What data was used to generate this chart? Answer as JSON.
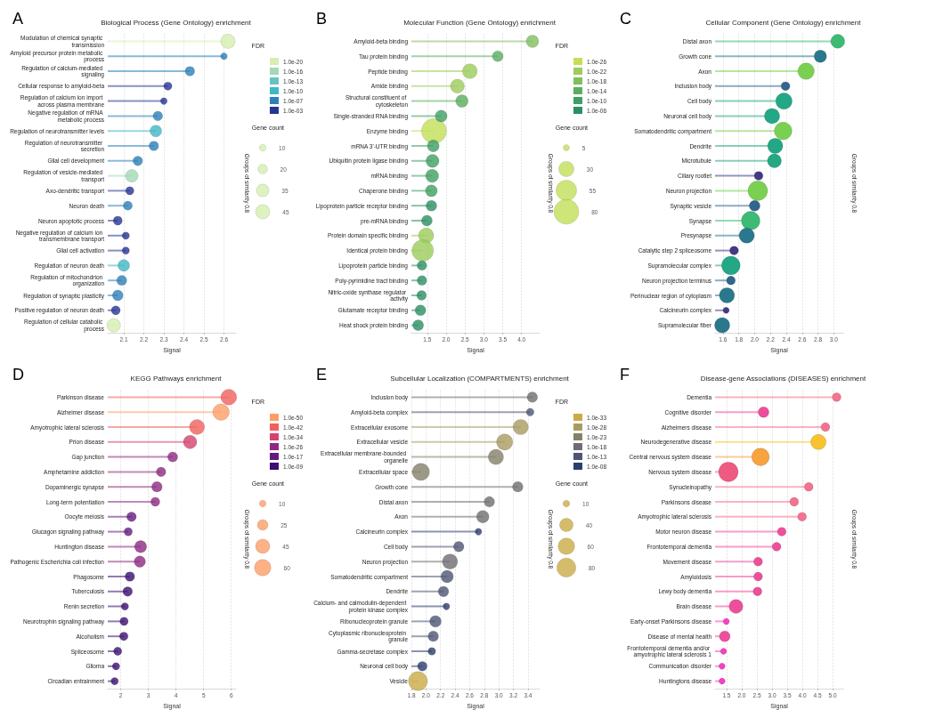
{
  "chart_data": [
    {
      "type": "lollipop",
      "orientation": "horizontal",
      "title": "Biological Process (Gene Ontology) enrichment",
      "xlabel": "Signal",
      "y2label": "Groups of similarity 0.8",
      "annotations": [
        "A",
        "Gene count"
      ],
      "legend_title": "FDR",
      "legend": "right",
      "grid": "x",
      "marker": "circle",
      "categories": [
        "Modulation of chemical synaptic transmission",
        "Amyloid precursor protein metabolic process",
        "Regulation of calcium-mediated signaling",
        "Cellular response to amyloid-beta",
        "Regulation of calcium ion import across plasma membrane",
        "Negative regulation of mRNA metabolic process",
        "Regulation of neurotransmitter levels",
        "Regulation of neurotransmitter secretion",
        "Glial cell development",
        "Regulation of vesicle-mediated transport",
        "Axo-dendritic transport",
        "Neuron death",
        "Neuron apoptotic process",
        "Negative regulation of calcium ion transmembrane transport",
        "Glial cell activation",
        "Regulation of neuron death",
        "Regulation of mitochondrion organization",
        "Regulation of synaptic plasticity",
        "Positive regulation of neuron death",
        "Regulation of cellular catabolic process"
      ],
      "size_legend": [
        10,
        20,
        35,
        45
      ],
      "xlim": [
        2.02,
        2.66
      ],
      "xticks": [
        2.1,
        2.2,
        2.3,
        2.4,
        2.5,
        2.6
      ],
      "series": [
        {
          "name": "1.0e-20",
          "color": "#d6efb0",
          "values": [
            2.62,
            null,
            null,
            null,
            null,
            null,
            null,
            null,
            null,
            null,
            null,
            null,
            null,
            null,
            null,
            null,
            null,
            null,
            null,
            2.05
          ],
          "sizes": [
            45,
            null,
            null,
            null,
            null,
            null,
            null,
            null,
            null,
            null,
            null,
            null,
            null,
            null,
            null,
            null,
            null,
            null,
            null,
            40
          ]
        },
        {
          "name": "1.0e-16",
          "color": "#a1dab4",
          "values": [
            null,
            null,
            null,
            null,
            null,
            null,
            null,
            null,
            null,
            2.14,
            null,
            null,
            null,
            null,
            null,
            null,
            null,
            null,
            null,
            null
          ],
          "sizes": [
            null,
            null,
            null,
            null,
            null,
            null,
            null,
            null,
            null,
            35,
            null,
            null,
            null,
            null,
            null,
            null,
            null,
            null,
            null,
            null
          ]
        },
        {
          "name": "1.0e-13",
          "color": "#67c3c1",
          "values": [
            null,
            null,
            null,
            null,
            null,
            null,
            null,
            null,
            null,
            null,
            null,
            null,
            null,
            null,
            null,
            null,
            null,
            null,
            null,
            null
          ]
        },
        {
          "name": "1.0e-10",
          "color": "#41b6c4",
          "values": [
            null,
            null,
            null,
            null,
            null,
            null,
            2.26,
            null,
            null,
            null,
            null,
            null,
            null,
            null,
            null,
            2.1,
            null,
            null,
            null,
            null
          ],
          "sizes": [
            null,
            null,
            null,
            null,
            null,
            null,
            30,
            null,
            null,
            null,
            null,
            null,
            null,
            null,
            null,
            30,
            null,
            null,
            null,
            null
          ]
        },
        {
          "name": "1.0e-07",
          "color": "#2c7fb8",
          "values": [
            null,
            2.6,
            2.43,
            null,
            null,
            2.27,
            null,
            2.25,
            2.17,
            null,
            null,
            2.12,
            null,
            null,
            null,
            null,
            2.09,
            2.07,
            null,
            null
          ],
          "sizes": [
            null,
            10,
            20,
            null,
            null,
            20,
            null,
            20,
            20,
            null,
            null,
            18,
            null,
            null,
            null,
            null,
            22,
            25,
            null,
            null
          ]
        },
        {
          "name": "1.0e-03",
          "color": "#253494",
          "values": [
            null,
            null,
            null,
            2.32,
            2.3,
            null,
            null,
            null,
            null,
            null,
            2.13,
            null,
            2.07,
            2.11,
            2.11,
            null,
            null,
            null,
            2.06,
            null
          ],
          "sizes": [
            null,
            null,
            null,
            15,
            10,
            null,
            null,
            null,
            null,
            null,
            15,
            null,
            18,
            12,
            12,
            null,
            null,
            null,
            18,
            null
          ]
        }
      ]
    },
    {
      "type": "lollipop",
      "orientation": "horizontal",
      "title": "Molecular Function (Gene Ontology) enrichment",
      "xlabel": "Signal",
      "y2label": "Groups of similarity 0.8",
      "annotations": [
        "B",
        "Gene count"
      ],
      "legend_title": "FDR",
      "legend": "right",
      "grid": "x",
      "marker": "circle",
      "categories": [
        "Amyloid-beta binding",
        "Tau protein binding",
        "Peptide binding",
        "Amide binding",
        "Structural constituent of cytoskeleton",
        "Single-stranded RNA binding",
        "Enzyme binding",
        "mRNA 3'-UTR binding",
        "Ubiquitin protein ligase binding",
        "mRNA binding",
        "Chaperone binding",
        "Lipoprotein particle receptor binding",
        "pre-mRNA binding",
        "Protein domain specific binding",
        "Identical protein binding",
        "Lipoprotein particle binding",
        "Poly-pyrimidine tract binding",
        "Nitric-oxide synthase regulator activity",
        "Glutamate receptor binding",
        "Heat shock protein binding"
      ],
      "size_legend": [
        5,
        30,
        55,
        80
      ],
      "xlim": [
        1.08,
        4.48
      ],
      "xticks": [
        1.5,
        {
          "value": 2,
          "label": "2.0"
        },
        2.5,
        {
          "value": 3,
          "label": "3.0"
        },
        3.5,
        {
          "value": 4,
          "label": "4.0"
        }
      ],
      "series": [
        {
          "name": "1.0e-26",
          "color": "#c2df57",
          "values": [
            null,
            null,
            null,
            null,
            null,
            null,
            1.68,
            null,
            null,
            null,
            null,
            null,
            null,
            null,
            null,
            null,
            null,
            null,
            null,
            null
          ],
          "sizes": [
            null,
            null,
            null,
            null,
            null,
            null,
            80,
            null,
            null,
            null,
            null,
            null,
            null,
            null,
            null,
            null,
            null,
            null,
            null,
            null
          ]
        },
        {
          "name": "1.0e-22",
          "color": "#9ccc5a",
          "values": [
            null,
            null,
            2.63,
            2.3,
            null,
            null,
            null,
            null,
            null,
            null,
            null,
            null,
            null,
            1.47,
            1.38,
            null,
            null,
            null,
            null,
            null
          ],
          "sizes": [
            null,
            null,
            28,
            25,
            null,
            null,
            null,
            null,
            null,
            null,
            null,
            null,
            null,
            30,
            60,
            null,
            null,
            null,
            null,
            null
          ]
        },
        {
          "name": "1.0e-18",
          "color": "#7fbf5c",
          "values": [
            4.29,
            null,
            null,
            null,
            null,
            null,
            null,
            null,
            null,
            null,
            null,
            null,
            null,
            null,
            null,
            null,
            null,
            null,
            null,
            null
          ],
          "sizes": [
            20,
            null,
            null,
            null,
            null,
            null,
            null,
            null,
            null,
            null,
            null,
            null,
            null,
            null,
            null,
            null,
            null,
            null,
            null,
            null
          ]
        },
        {
          "name": "1.0e-14",
          "color": "#5aad5f",
          "values": [
            null,
            3.37,
            null,
            null,
            2.42,
            null,
            null,
            null,
            null,
            null,
            null,
            null,
            null,
            null,
            null,
            null,
            null,
            null,
            null,
            null
          ],
          "sizes": [
            null,
            15,
            null,
            null,
            20,
            null,
            null,
            null,
            null,
            null,
            null,
            null,
            null,
            null,
            null,
            null,
            null,
            null,
            null,
            null
          ]
        },
        {
          "name": "1.0e-10",
          "color": "#3f9f62",
          "values": [
            null,
            null,
            null,
            null,
            null,
            1.87,
            null,
            1.66,
            1.64,
            1.63,
            1.61,
            null,
            null,
            null,
            null,
            null,
            null,
            null,
            null,
            null
          ],
          "sizes": [
            null,
            null,
            null,
            null,
            null,
            18,
            null,
            18,
            22,
            22,
            18,
            null,
            null,
            null,
            null,
            null,
            null,
            null,
            null,
            null
          ]
        },
        {
          "name": "1.0e-06",
          "color": "#2a8f63",
          "values": [
            null,
            null,
            null,
            null,
            null,
            null,
            null,
            null,
            null,
            null,
            null,
            1.61,
            1.49,
            null,
            null,
            1.36,
            1.36,
            1.35,
            1.32,
            1.26
          ],
          "sizes": [
            null,
            null,
            null,
            null,
            null,
            null,
            null,
            null,
            null,
            null,
            null,
            15,
            15,
            null,
            null,
            12,
            12,
            12,
            15,
            15
          ]
        }
      ]
    },
    {
      "type": "lollipop",
      "orientation": "horizontal",
      "title": "Cellular Component (Gene Ontology) enrichment",
      "xlabel": "Signal",
      "y2label": "Groups of similarity 0.8",
      "annotations": [
        "C"
      ],
      "grid": "x",
      "marker": "circle",
      "categories": [
        "Distal axon",
        "Growth cone",
        "Axon",
        "Inclusion body",
        "Cell body",
        "Neuronal cell body",
        "Somatodendritic compartment",
        "Dendrite",
        "Microtubule",
        "Ciliary rootlet",
        "Neuron projection",
        "Synaptic vesicle",
        "Synapse",
        "Presynapse",
        "Catalytic step 2 spliceosome",
        "Supramolecular complex",
        "Neuron projection terminus",
        "Perinuclear region of cytoplasm",
        "Calcineurin complex",
        "Supramolecular fiber"
      ],
      "xlim": [
        1.5,
        3.12
      ],
      "xticks": [
        1.6,
        1.8,
        {
          "value": 2,
          "label": "2.0"
        },
        2.2,
        2.4,
        2.6,
        2.8,
        {
          "value": 3,
          "label": "3.0"
        }
      ],
      "series": [
        {
          "colors": [
            "#3dbb74",
            "#2a788e",
            "#7ad151",
            "#31668d",
            "#22a884",
            "#22a884",
            "#7ad151",
            "#22a884",
            "#22a884",
            "#443983",
            "#7ad151",
            "#31668d",
            "#3dbb74",
            "#2a788e",
            "#443983",
            "#22a884",
            "#31668d",
            "#2a788e",
            "#443983",
            "#2a788e"
          ],
          "values": [
            3.05,
            2.83,
            2.65,
            2.39,
            2.37,
            2.22,
            2.36,
            2.26,
            2.25,
            2.05,
            2.04,
            2.0,
            1.95,
            1.9,
            1.74,
            1.7,
            1.7,
            1.65,
            1.64,
            1.59
          ],
          "sizes": [
            0.5,
            0.4,
            0.7,
            0.2,
            0.7,
            0.6,
            0.8,
            0.6,
            0.5,
            0.2,
            1,
            0.3,
            0.9,
            0.6,
            0.2,
            0.9,
            0.2,
            0.6,
            0.1,
            0.6
          ]
        }
      ]
    },
    {
      "type": "lollipop",
      "orientation": "horizontal",
      "title": "KEGG Pathways enrichment",
      "xlabel": "Signal",
      "y2label": "Groups of similarity 0.8",
      "annotations": [
        "D",
        "Gene count"
      ],
      "legend_title": "FDR",
      "legend": "right",
      "grid": "x",
      "marker": "circle",
      "categories": [
        "Parkinson disease",
        "Alzheimer disease",
        "Amyotrophic lateral sclerosis",
        "Prion disease",
        "Gap junction",
        "Amphetamine addiction",
        "Dopaminergic synapse",
        "Long-term potentiation",
        "Oocyte meiosis",
        "Glucagon signaling pathway",
        "Huntington disease",
        "Pathogenic Escherichia coli infection",
        "Phagosome",
        "Tuberculosis",
        "Renin secretion",
        "Neurotrophin signaling pathway",
        "Alcoholism",
        "Spliceosome",
        "Glioma",
        "Circadian entrainment"
      ],
      "size_legend": [
        10,
        25,
        45,
        60
      ],
      "xlim": [
        1.53,
        6.17
      ],
      "xticks": [
        2,
        3,
        4,
        5,
        6
      ],
      "series": [
        {
          "name": "1.0e-50",
          "color": "#fc9e66",
          "values": [
            null,
            5.63,
            null,
            null,
            null,
            null,
            null,
            null,
            null,
            null,
            null,
            null,
            null,
            null,
            null,
            null,
            null,
            null,
            null,
            null
          ],
          "sizes": [
            null,
            60,
            null,
            null,
            null,
            null,
            null,
            null,
            null,
            null,
            null,
            null,
            null,
            null,
            null,
            null,
            null,
            null,
            null,
            null
          ]
        },
        {
          "name": "1.0e-42",
          "color": "#f1605d",
          "values": [
            5.91,
            null,
            4.76,
            null,
            null,
            null,
            null,
            null,
            null,
            null,
            null,
            null,
            null,
            null,
            null,
            null,
            null,
            null,
            null,
            null
          ],
          "sizes": [
            55,
            null,
            50,
            null,
            null,
            null,
            null,
            null,
            null,
            null,
            null,
            null,
            null,
            null,
            null,
            null,
            null,
            null,
            null,
            null
          ]
        },
        {
          "name": "1.0e-34",
          "color": "#d3436e",
          "values": [
            null,
            null,
            null,
            4.51,
            null,
            null,
            null,
            null,
            null,
            null,
            null,
            null,
            null,
            null,
            null,
            null,
            null,
            null,
            null,
            null
          ],
          "sizes": [
            null,
            null,
            null,
            40,
            null,
            null,
            null,
            null,
            null,
            null,
            null,
            null,
            null,
            null,
            null,
            null,
            null,
            null,
            null,
            null
          ]
        },
        {
          "name": "1.0e-26",
          "color": "#8c2981",
          "values": [
            null,
            null,
            null,
            null,
            3.88,
            3.46,
            3.31,
            3.25,
            null,
            null,
            2.72,
            2.69,
            null,
            null,
            null,
            null,
            null,
            null,
            null,
            null
          ],
          "sizes": [
            null,
            null,
            null,
            null,
            22,
            20,
            24,
            18,
            null,
            null,
            32,
            28,
            null,
            null,
            null,
            null,
            null,
            null,
            null,
            null
          ]
        },
        {
          "name": "1.0e-17",
          "color": "#641a80",
          "values": [
            null,
            null,
            null,
            null,
            null,
            null,
            null,
            null,
            2.39,
            2.27,
            null,
            null,
            null,
            null,
            null,
            null,
            null,
            null,
            null,
            null
          ],
          "sizes": [
            null,
            null,
            null,
            null,
            null,
            null,
            null,
            null,
            20,
            15,
            null,
            null,
            null,
            null,
            null,
            null,
            null,
            null,
            null,
            null
          ]
        },
        {
          "name": "1.0e-09",
          "color": "#3b0f70",
          "values": [
            null,
            null,
            null,
            null,
            null,
            null,
            null,
            null,
            null,
            null,
            null,
            null,
            2.33,
            2.25,
            2.15,
            2.12,
            2.11,
            1.89,
            1.83,
            1.78
          ],
          "sizes": [
            null,
            null,
            null,
            null,
            null,
            null,
            null,
            null,
            null,
            null,
            null,
            null,
            20,
            20,
            12,
            15,
            16,
            15,
            12,
            12
          ]
        }
      ]
    },
    {
      "type": "lollipop",
      "orientation": "horizontal",
      "title": "Subcellular Localization (COMPARTMENTS) enrichment",
      "xlabel": "Signal",
      "y2label": "Groups of similarity 0.8",
      "annotations": [
        "E",
        "Gene count"
      ],
      "legend_title": "FDR",
      "legend": "right",
      "grid": "x",
      "marker": "circle",
      "categories": [
        "Inclusion body",
        "Amyloid-beta complex",
        "Extracellular exosome",
        "Extracellular vesicle",
        "Extracellular membrane-bounded organelle",
        "Extracellular space",
        "Growth cone",
        "Distal axon",
        "Axon",
        "Calcineurin complex",
        "Cell body",
        "Neuron projection",
        "Somatodendritic compartment",
        "Dendrite",
        "Calcium- and calmodulin-dependent protein kinase complex",
        "Ribonucleoprotein granule",
        "Cytoplasmic ribonucleoprotein granule",
        "Gamma-secretase complex",
        "Neuronal cell body",
        "Vesicle"
      ],
      "size_legend": [
        10,
        40,
        60,
        80
      ],
      "xlim": [
        1.8,
        3.56
      ],
      "xticks": [
        1.8,
        {
          "value": 2,
          "label": "2.0"
        },
        2.2,
        2.4,
        2.6,
        2.8,
        {
          "value": 3,
          "label": "3.0"
        },
        3.2,
        3.4
      ],
      "series": [
        {
          "name": "1.0e-33",
          "color": "#c9ab45",
          "values": [
            null,
            null,
            null,
            null,
            null,
            null,
            null,
            null,
            null,
            null,
            null,
            null,
            null,
            null,
            null,
            null,
            null,
            null,
            null,
            1.89
          ],
          "sizes": [
            null,
            null,
            null,
            null,
            null,
            null,
            null,
            null,
            null,
            null,
            null,
            null,
            null,
            null,
            null,
            null,
            null,
            null,
            null,
            80
          ]
        },
        {
          "name": "1.0e-28",
          "color": "#a89b62",
          "values": [
            null,
            null,
            3.3,
            3.08,
            null,
            null,
            null,
            null,
            null,
            null,
            null,
            null,
            null,
            null,
            null,
            null,
            null,
            null,
            null,
            null
          ],
          "sizes": [
            null,
            null,
            51,
            58,
            null,
            null,
            null,
            null,
            null,
            null,
            null,
            null,
            null,
            null,
            null,
            null,
            null,
            null,
            null,
            null
          ]
        },
        {
          "name": "1.0e-23",
          "color": "#85806a",
          "values": [
            null,
            null,
            null,
            null,
            2.96,
            1.93,
            null,
            null,
            null,
            null,
            null,
            null,
            null,
            null,
            null,
            null,
            null,
            null,
            null,
            null
          ],
          "sizes": [
            null,
            null,
            null,
            null,
            51,
            65,
            null,
            null,
            null,
            null,
            null,
            null,
            null,
            null,
            null,
            null,
            null,
            null,
            null,
            null
          ]
        },
        {
          "name": "1.0e-18",
          "color": "#6e6e72",
          "values": [
            3.46,
            null,
            null,
            null,
            null,
            null,
            3.26,
            2.87,
            2.78,
            null,
            null,
            2.33,
            null,
            null,
            null,
            null,
            null,
            null,
            null,
            null
          ],
          "sizes": [
            24,
            null,
            null,
            null,
            null,
            null,
            24,
            24,
            34,
            null,
            null,
            51,
            null,
            null,
            null,
            null,
            null,
            null,
            null,
            null
          ]
        },
        {
          "name": "1.0e-13",
          "color": "#4e5573",
          "values": [
            null,
            3.43,
            null,
            null,
            null,
            null,
            null,
            null,
            null,
            null,
            2.45,
            null,
            2.29,
            2.24,
            null,
            2.13,
            2.1,
            null,
            null,
            null
          ],
          "sizes": [
            null,
            13,
            null,
            null,
            null,
            null,
            null,
            null,
            null,
            null,
            24,
            null,
            34,
            24,
            null,
            29,
            24,
            null,
            null,
            null
          ]
        },
        {
          "name": "1.0e-08",
          "color": "#2d3d6d",
          "values": [
            null,
            null,
            null,
            null,
            null,
            null,
            null,
            null,
            null,
            2.72,
            null,
            null,
            null,
            null,
            2.28,
            null,
            null,
            2.08,
            1.95,
            null
          ],
          "sizes": [
            null,
            null,
            null,
            null,
            null,
            null,
            null,
            null,
            null,
            10,
            null,
            null,
            null,
            null,
            10,
            null,
            null,
            13,
            20,
            null
          ]
        }
      ]
    },
    {
      "type": "lollipop",
      "orientation": "horizontal",
      "title": "Disease-gene Associations (DISEASES) enrichment",
      "xlabel": "Signal",
      "y2label": "Groups of similarity 0.8",
      "annotations": [
        "F"
      ],
      "grid": "x",
      "marker": "circle",
      "categories": [
        "Dementia",
        "Cognitive disorder",
        "Alzheimers disease",
        "Neurodegenerative disease",
        "Central nervous system disease",
        "Nervous system disease",
        "Synucleinopathy",
        "Parkinsons disease",
        "Amyotrophic lateral sclerosis",
        "Motor neuron disease",
        "Frontotemporal dementia",
        "Movement disease",
        "Amyloidosis",
        "Lewy body dementia",
        "Brain disease",
        "Early-onset Parkinsons disease",
        "Disease of mental health",
        "Frontotemporal dementia and/or amyotrophic lateral sclerosis 1",
        "Communication disorder",
        "Huntingtons disease"
      ],
      "xlim": [
        1.12,
        5.35
      ],
      "xticks": [
        1.5,
        {
          "value": 2,
          "label": "2.0"
        },
        2.5,
        {
          "value": 3,
          "label": "3.0"
        },
        3.5,
        {
          "value": 4,
          "label": "4.0"
        },
        4.5,
        {
          "value": 5,
          "label": "5.0"
        }
      ],
      "series": [
        {
          "colors": [
            "#f4738e",
            "#ee4f9c",
            "#f4738e",
            "#f9c32f",
            "#f7a340",
            "#ef5a83",
            "#f4738e",
            "#f4738e",
            "#f4738e",
            "#ee4f9c",
            "#ee4f9c",
            "#ee4f9c",
            "#ee4f9c",
            "#ee4f9c",
            "#ee4f9c",
            "#f542c0",
            "#ee4f9c",
            "#f542c0",
            "#f542c0",
            "#f542c0"
          ],
          "values": [
            5.13,
            2.72,
            4.76,
            4.53,
            2.62,
            1.56,
            4.21,
            3.73,
            3.99,
            3.32,
            3.15,
            2.54,
            2.54,
            2.52,
            1.81,
            1.49,
            1.44,
            1.4,
            1.35,
            1.35
          ],
          "sizes": [
            0.2,
            0.3,
            0.2,
            0.6,
            0.8,
            1,
            0.2,
            0.2,
            0.2,
            0.2,
            0.2,
            0.2,
            0.2,
            0.2,
            0.5,
            0.1,
            0.3,
            0.1,
            0.1,
            0.1
          ]
        }
      ]
    }
  ]
}
